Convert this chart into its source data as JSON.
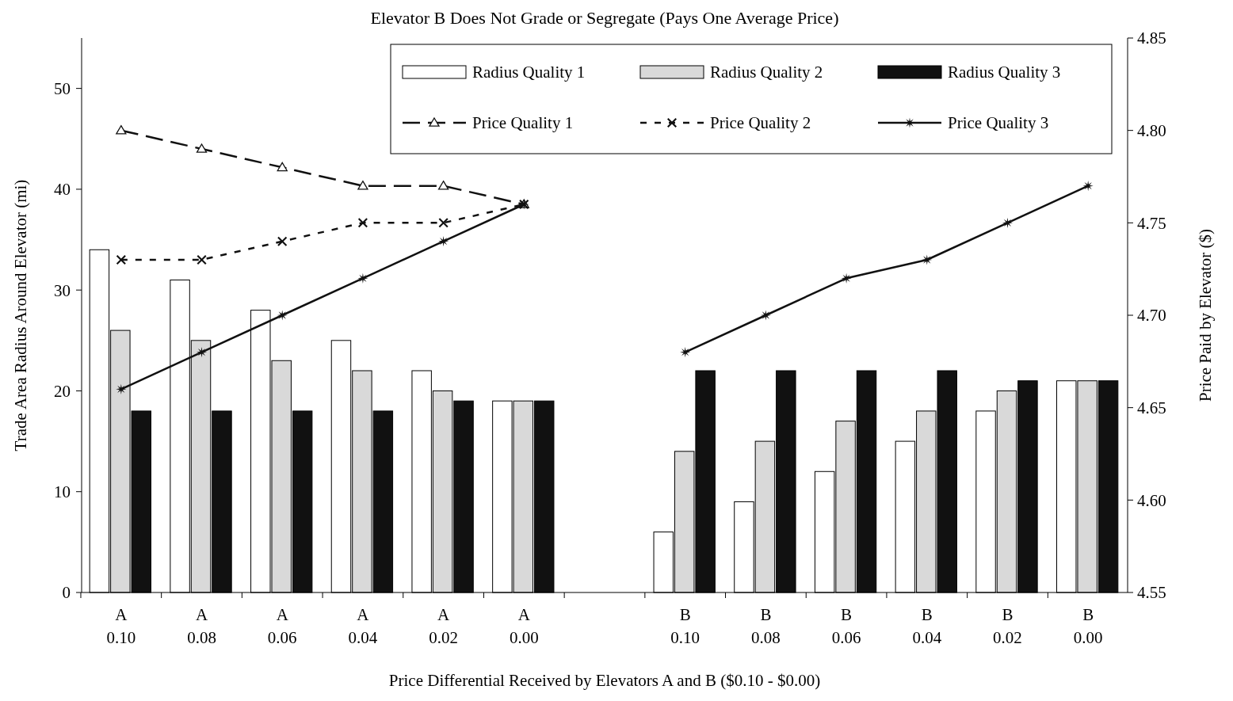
{
  "chart_data": {
    "type": "bar",
    "title": "Elevator B Does Not Grade or Segregate (Pays One Average Price)",
    "xlabel": "Price Differential Received by Elevators A and B ($0.10 - $0.00)",
    "ylabel": "Trade Area Radius Around Elevator (mi)",
    "y2label": "Price Paid by Elevator ($)",
    "categories": [
      "A\n0.10",
      "A\n0.08",
      "A\n0.06",
      "A\n0.04",
      "A\n0.02",
      "A\n0.00",
      null,
      "B\n0.10",
      "B\n0.08",
      "B\n0.06",
      "B\n0.04",
      "B\n0.02",
      "B\n0.00"
    ],
    "ylim": [
      0,
      55
    ],
    "yticks": [
      0,
      10,
      20,
      30,
      40,
      50
    ],
    "y2lim": [
      4.55,
      4.85
    ],
    "y2ticks": [
      4.55,
      {
        "value": 4.6,
        "label": "4.60"
      },
      4.65,
      {
        "value": 4.7,
        "label": "4.70"
      },
      4.75,
      {
        "value": 4.8,
        "label": "4.80"
      },
      4.85
    ],
    "legend": "top right",
    "grid": false,
    "series": [
      {
        "name": "Radius Quality 1",
        "type": "bar",
        "color": "#ffffff",
        "values": [
          34,
          31,
          28,
          25,
          22,
          19,
          null,
          6,
          9,
          12,
          15,
          18,
          21
        ]
      },
      {
        "name": "Radius Quality 2",
        "type": "bar",
        "color": "#d9d9d9",
        "values": [
          26,
          25,
          23,
          22,
          20,
          19,
          null,
          14,
          15,
          17,
          18,
          20,
          21
        ]
      },
      {
        "name": "Radius Quality 3",
        "type": "bar",
        "color": "#111111",
        "values": [
          18,
          18,
          18,
          18,
          19,
          19,
          null,
          22,
          22,
          22,
          22,
          21,
          21
        ]
      },
      {
        "name": "Price Quality 1",
        "type": "line",
        "axis": "y2",
        "color": "#111111",
        "line_style": "dashed",
        "marker": "triangle",
        "values": [
          4.8,
          4.79,
          4.78,
          4.77,
          4.77,
          4.76,
          null,
          null,
          null,
          null,
          null,
          null,
          null
        ]
      },
      {
        "name": "Price Quality 2",
        "type": "line",
        "axis": "y2",
        "color": "#111111",
        "line_style": "dotted",
        "marker": "cross",
        "values": [
          4.73,
          4.73,
          4.74,
          4.75,
          4.75,
          4.76,
          null,
          null,
          null,
          null,
          null,
          null,
          null
        ]
      },
      {
        "name": "Price Quality 3",
        "type": "line",
        "axis": "y2",
        "color": "#111111",
        "line_style": "solid",
        "marker": "star",
        "values": [
          4.66,
          4.68,
          4.7,
          4.72,
          4.74,
          4.76,
          null,
          4.68,
          4.7,
          4.72,
          4.73,
          4.75,
          4.77
        ]
      }
    ]
  }
}
